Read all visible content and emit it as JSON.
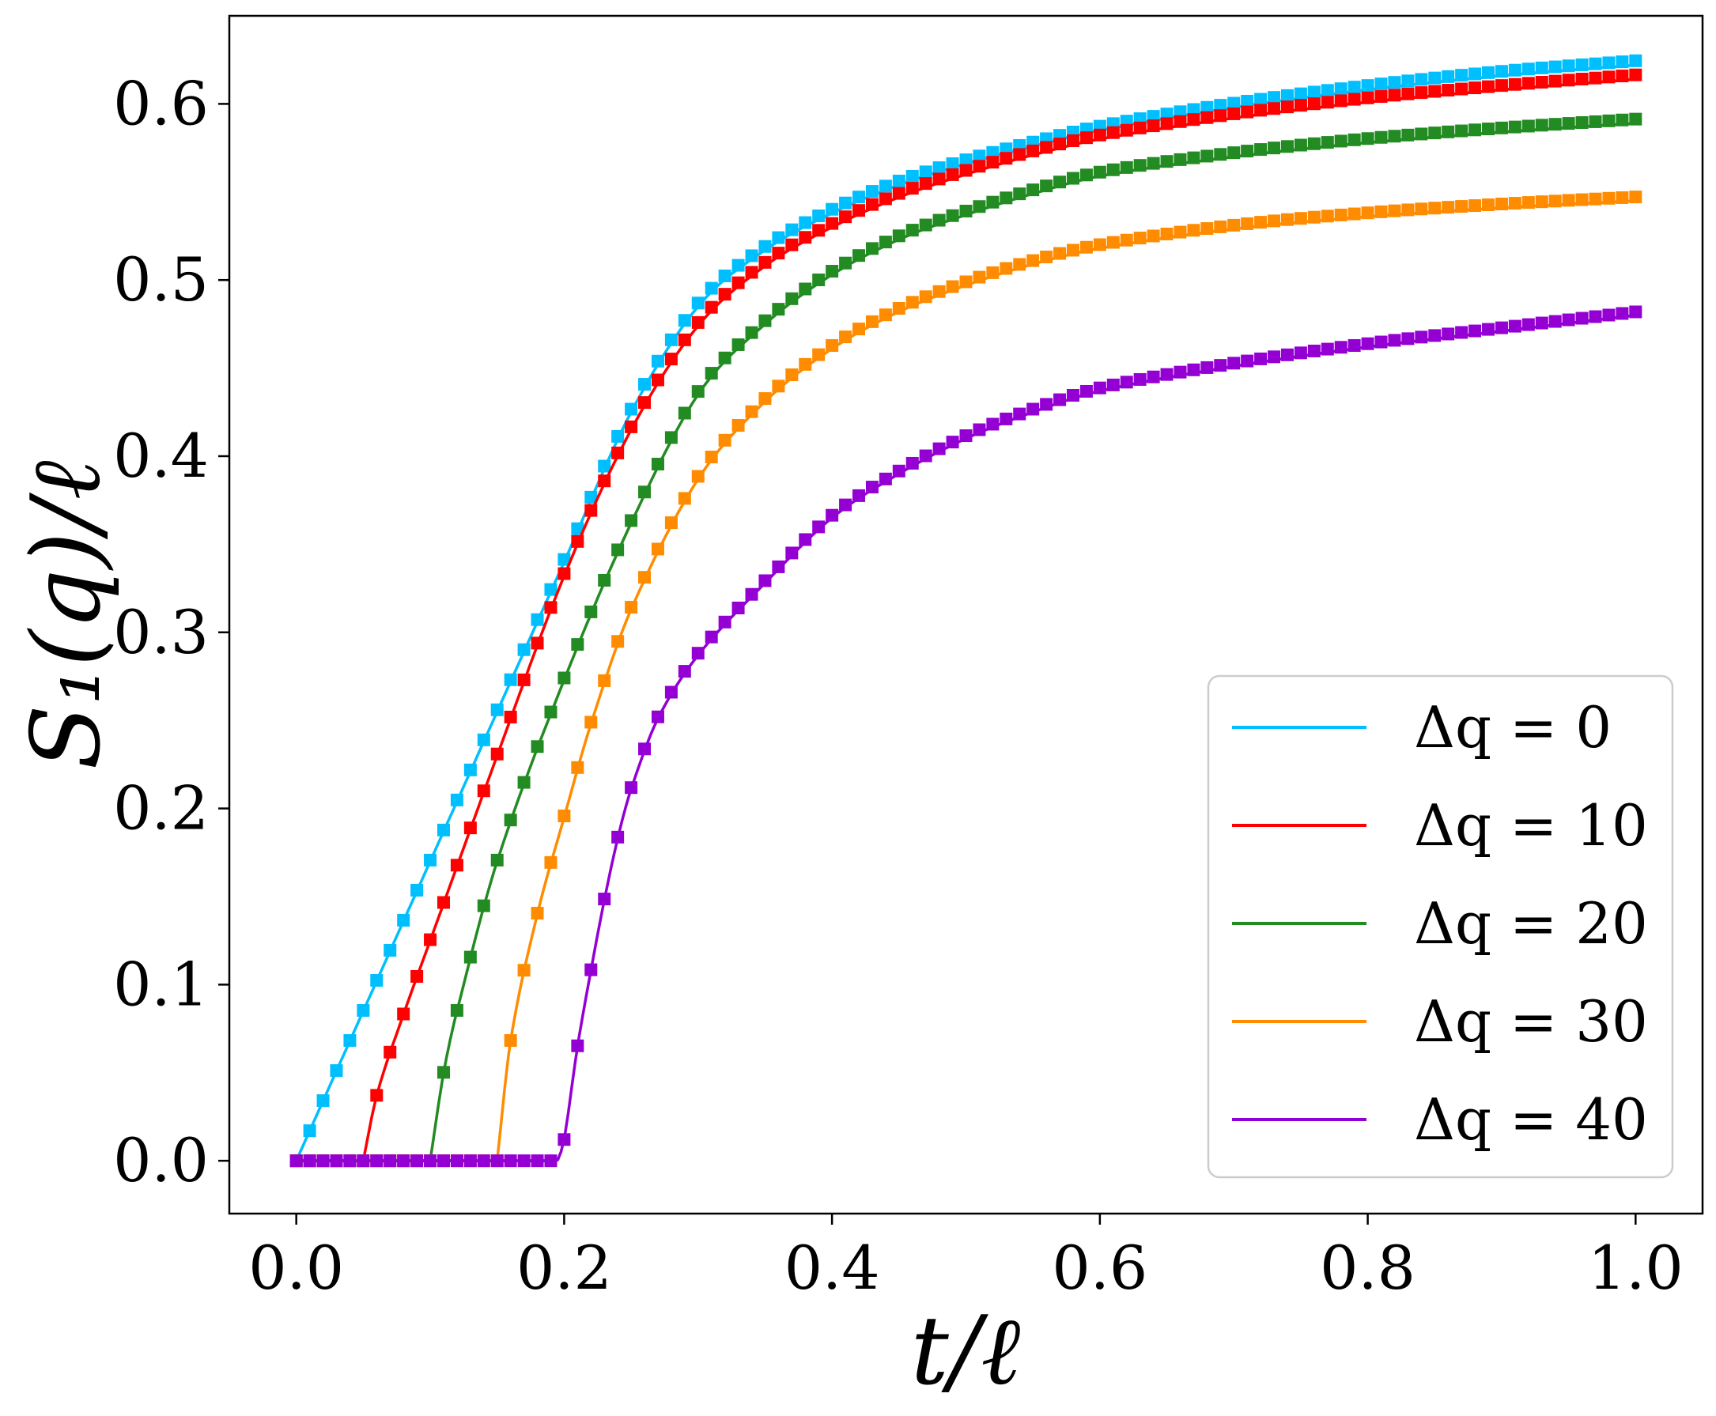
{
  "chart_data": {
    "type": "line",
    "xlabel": "t/ℓ",
    "ylabel": "S₁(q)/ℓ",
    "xlim": [
      -0.05,
      1.05
    ],
    "ylim": [
      -0.03,
      0.65
    ],
    "xticks": [
      "0.0",
      "0.2",
      "0.4",
      "0.6",
      "0.8",
      "1.0"
    ],
    "yticks": [
      "0.0",
      "0.1",
      "0.2",
      "0.3",
      "0.4",
      "0.5",
      "0.6"
    ],
    "grid": false,
    "legend_position": "bottom-right",
    "series": [
      {
        "name": "Δq = 0",
        "color": "#00bfff",
        "x": [
          0.0,
          0.05,
          0.1,
          0.15,
          0.2,
          0.25,
          0.3,
          0.35,
          0.4,
          0.45,
          0.5,
          0.55,
          0.6,
          0.7,
          0.8,
          0.9,
          1.0
        ],
        "y": [
          0.0,
          0.085,
          0.17,
          0.255,
          0.34,
          0.425,
          0.485,
          0.517,
          0.538,
          0.554,
          0.566,
          0.576,
          0.585,
          0.598,
          0.608,
          0.616,
          0.622
        ]
      },
      {
        "name": "Δq = 10",
        "color": "#ff0000",
        "x": [
          0.05,
          0.06,
          0.08,
          0.1,
          0.15,
          0.2,
          0.25,
          0.3,
          0.35,
          0.4,
          0.45,
          0.5,
          0.55,
          0.6,
          0.7,
          0.8,
          0.9,
          1.0
        ],
        "y": [
          0.0,
          0.037,
          0.083,
          0.125,
          0.23,
          0.332,
          0.415,
          0.474,
          0.508,
          0.53,
          0.547,
          0.56,
          0.571,
          0.58,
          0.592,
          0.601,
          0.608,
          0.614
        ]
      },
      {
        "name": "Δq = 20",
        "color": "#228b22",
        "x": [
          0.1,
          0.11,
          0.12,
          0.15,
          0.2,
          0.25,
          0.3,
          0.35,
          0.4,
          0.45,
          0.5,
          0.55,
          0.6,
          0.7,
          0.8,
          0.9,
          1.0
        ],
        "y": [
          0.0,
          0.05,
          0.085,
          0.17,
          0.273,
          0.362,
          0.435,
          0.475,
          0.503,
          0.523,
          0.537,
          0.549,
          0.559,
          0.57,
          0.578,
          0.584,
          0.589
        ]
      },
      {
        "name": "Δq = 30",
        "color": "#ff8c00",
        "x": [
          0.15,
          0.16,
          0.18,
          0.2,
          0.22,
          0.25,
          0.3,
          0.35,
          0.4,
          0.45,
          0.5,
          0.55,
          0.6,
          0.7,
          0.8,
          0.9,
          1.0
        ],
        "y": [
          0.0,
          0.068,
          0.14,
          0.195,
          0.248,
          0.313,
          0.387,
          0.431,
          0.461,
          0.482,
          0.497,
          0.509,
          0.518,
          0.529,
          0.536,
          0.541,
          0.545
        ]
      },
      {
        "name": "Δq = 40",
        "color": "#9400d3",
        "x": [
          0.195,
          0.2,
          0.21,
          0.22,
          0.23,
          0.24,
          0.25,
          0.27,
          0.3,
          0.35,
          0.4,
          0.45,
          0.5,
          0.55,
          0.6,
          0.7,
          0.8,
          0.9,
          1.0
        ],
        "y": [
          0.0,
          0.012,
          0.065,
          0.108,
          0.148,
          0.183,
          0.211,
          0.251,
          0.287,
          0.328,
          0.365,
          0.39,
          0.41,
          0.425,
          0.437,
          0.451,
          0.462,
          0.471,
          0.48
        ]
      }
    ]
  }
}
